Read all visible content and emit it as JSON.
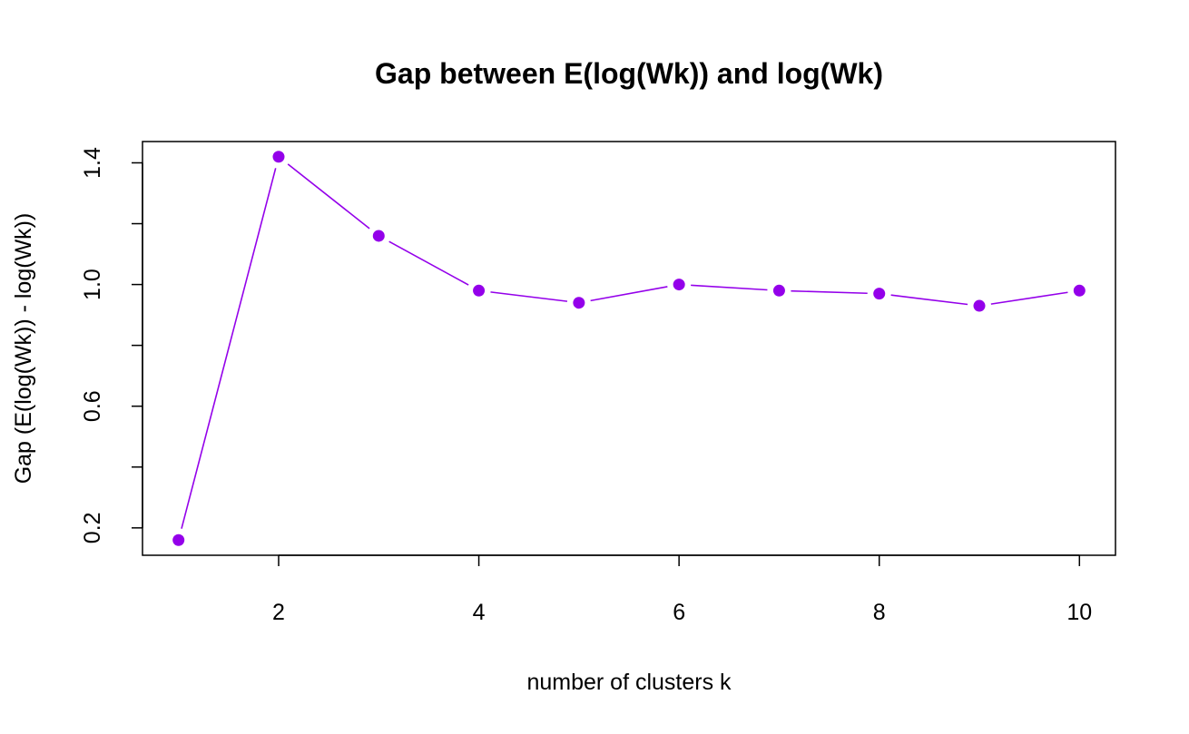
{
  "chart_data": {
    "type": "line",
    "title": "Gap between E(log(Wk)) and log(Wk)",
    "xlabel": "number of clusters k",
    "ylabel": "Gap (E(log(Wk)) - log(Wk))",
    "x": [
      1,
      2,
      3,
      4,
      5,
      6,
      7,
      8,
      9,
      10
    ],
    "series": [
      {
        "values": [
          0.16,
          1.42,
          1.16,
          0.98,
          0.94,
          1.0,
          0.98,
          0.97,
          0.93,
          0.98
        ]
      }
    ],
    "xlim": [
      0.64,
      10.36
    ],
    "ylim": [
      0.11,
      1.47
    ],
    "x_ticks": [
      2,
      4,
      6,
      8,
      10
    ],
    "x_tick_labels": [
      "2",
      "4",
      "6",
      "8",
      "10"
    ],
    "y_ticks": [
      0.2,
      0.4,
      0.6,
      0.8,
      1.0,
      1.2,
      1.4
    ],
    "y_tick_labels": [
      "0.2",
      "",
      "0.6",
      "",
      "1.0",
      "",
      "1.4"
    ],
    "grid": false,
    "box": true,
    "series_color": "#9400EA",
    "marker": "filled-circle"
  }
}
